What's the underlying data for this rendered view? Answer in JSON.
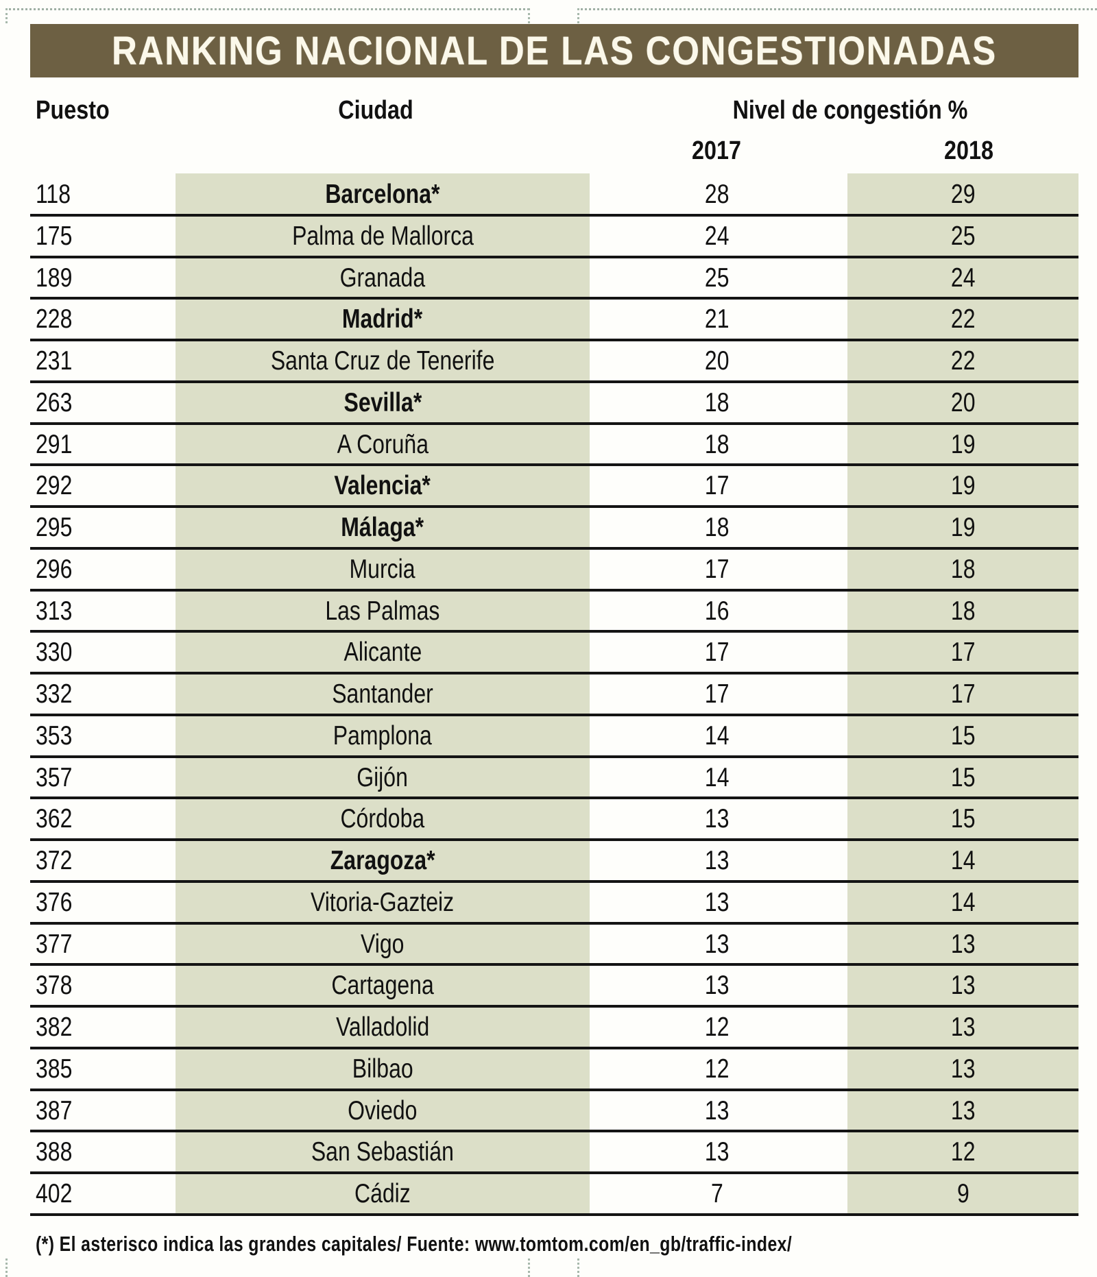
{
  "title": "RANKING NACIONAL DE LAS CONGESTIONADAS",
  "headers": {
    "rank": "Puesto",
    "city": "Ciudad",
    "level": "Nivel de congestión %",
    "year1": "2017",
    "year2": "2018"
  },
  "rows": [
    {
      "rank": "118",
      "city": "Barcelona*",
      "capital": true,
      "y2017": "28",
      "y2018": "29"
    },
    {
      "rank": "175",
      "city": "Palma de Mallorca",
      "capital": false,
      "y2017": "24",
      "y2018": "25"
    },
    {
      "rank": "189",
      "city": "Granada",
      "capital": false,
      "y2017": "25",
      "y2018": "24"
    },
    {
      "rank": "228",
      "city": "Madrid*",
      "capital": true,
      "y2017": "21",
      "y2018": "22"
    },
    {
      "rank": "231",
      "city": "Santa Cruz de Tenerife",
      "capital": false,
      "y2017": "20",
      "y2018": "22"
    },
    {
      "rank": "263",
      "city": "Sevilla*",
      "capital": true,
      "y2017": "18",
      "y2018": "20"
    },
    {
      "rank": "291",
      "city": "A Coruña",
      "capital": false,
      "y2017": "18",
      "y2018": "19"
    },
    {
      "rank": "292",
      "city": "Valencia*",
      "capital": true,
      "y2017": "17",
      "y2018": "19"
    },
    {
      "rank": "295",
      "city": "Málaga*",
      "capital": true,
      "y2017": "18",
      "y2018": "19"
    },
    {
      "rank": "296",
      "city": "Murcia",
      "capital": false,
      "y2017": "17",
      "y2018": "18"
    },
    {
      "rank": "313",
      "city": "Las Palmas",
      "capital": false,
      "y2017": "16",
      "y2018": "18"
    },
    {
      "rank": "330",
      "city": "Alicante",
      "capital": false,
      "y2017": "17",
      "y2018": "17"
    },
    {
      "rank": "332",
      "city": "Santander",
      "capital": false,
      "y2017": "17",
      "y2018": "17"
    },
    {
      "rank": "353",
      "city": "Pamplona",
      "capital": false,
      "y2017": "14",
      "y2018": "15"
    },
    {
      "rank": "357",
      "city": "Gijón",
      "capital": false,
      "y2017": "14",
      "y2018": "15"
    },
    {
      "rank": "362",
      "city": "Córdoba",
      "capital": false,
      "y2017": "13",
      "y2018": "15"
    },
    {
      "rank": "372",
      "city": "Zaragoza*",
      "capital": true,
      "y2017": "13",
      "y2018": "14"
    },
    {
      "rank": "376",
      "city": "Vitoria-Gazteiz",
      "capital": false,
      "y2017": "13",
      "y2018": "14"
    },
    {
      "rank": "377",
      "city": "Vigo",
      "capital": false,
      "y2017": "13",
      "y2018": "13"
    },
    {
      "rank": "378",
      "city": "Cartagena",
      "capital": false,
      "y2017": "13",
      "y2018": "13"
    },
    {
      "rank": "382",
      "city": "Valladolid",
      "capital": false,
      "y2017": "12",
      "y2018": "13"
    },
    {
      "rank": "385",
      "city": "Bilbao",
      "capital": false,
      "y2017": "12",
      "y2018": "13"
    },
    {
      "rank": "387",
      "city": "Oviedo",
      "capital": false,
      "y2017": "13",
      "y2018": "13"
    },
    {
      "rank": "388",
      "city": "San Sebastián",
      "capital": false,
      "y2017": "13",
      "y2018": "12"
    },
    {
      "rank": "402",
      "city": "Cádiz",
      "capital": false,
      "y2017": "7",
      "y2018": "9"
    }
  ],
  "footer": "(*) El asterisco indica las grandes capitales/ Fuente: www.tomtom.com/en_gb/traffic-index/",
  "colors": {
    "banner": "#6d6043",
    "banner_text": "#fbf8ea",
    "shade": "#dcdfc8",
    "rule": "#141414"
  },
  "chart_data": {
    "type": "table",
    "title": "RANKING NACIONAL DE LAS CONGESTIONADAS",
    "columns": [
      "Puesto",
      "Ciudad",
      "Nivel de congestión % 2017",
      "Nivel de congestión % 2018"
    ],
    "categories": [
      "Barcelona*",
      "Palma de Mallorca",
      "Granada",
      "Madrid*",
      "Santa Cruz de Tenerife",
      "Sevilla*",
      "A Coruña",
      "Valencia*",
      "Málaga*",
      "Murcia",
      "Las Palmas",
      "Alicante",
      "Santander",
      "Pamplona",
      "Gijón",
      "Córdoba",
      "Zaragoza*",
      "Vitoria-Gazteiz",
      "Vigo",
      "Cartagena",
      "Valladolid",
      "Bilbao",
      "Oviedo",
      "San Sebastián",
      "Cádiz"
    ],
    "rank": [
      118,
      175,
      189,
      228,
      231,
      263,
      291,
      292,
      295,
      296,
      313,
      330,
      332,
      353,
      357,
      362,
      372,
      376,
      377,
      378,
      382,
      385,
      387,
      388,
      402
    ],
    "series": [
      {
        "name": "2017",
        "values": [
          28,
          24,
          25,
          21,
          20,
          18,
          18,
          17,
          18,
          17,
          16,
          17,
          17,
          14,
          14,
          13,
          13,
          13,
          13,
          13,
          12,
          12,
          13,
          13,
          7
        ]
      },
      {
        "name": "2018",
        "values": [
          29,
          25,
          24,
          22,
          22,
          20,
          19,
          19,
          19,
          18,
          18,
          17,
          17,
          15,
          15,
          15,
          14,
          14,
          13,
          13,
          13,
          13,
          13,
          12,
          9
        ]
      }
    ],
    "note": "(*) El asterisco indica las grandes capitales/ Fuente: www.tomtom.com/en_gb/traffic-index/"
  }
}
